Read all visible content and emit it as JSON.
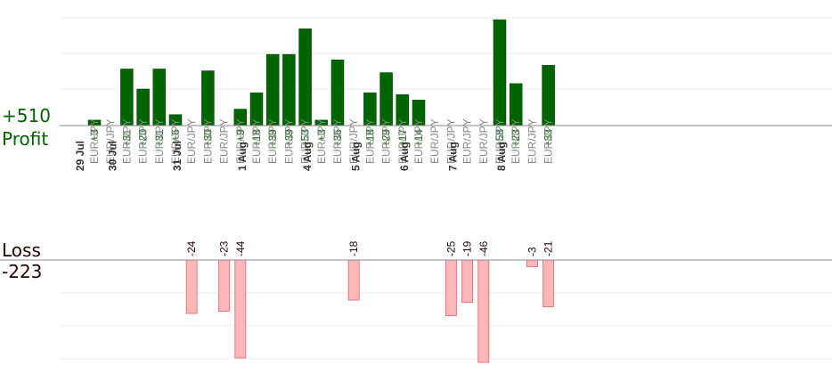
{
  "summary": {
    "profit_total": "+510",
    "profit_label": "Profit",
    "loss_label": "Loss",
    "loss_total": "-223"
  },
  "colors": {
    "profit_bar": "#006400",
    "profit_bar_edge": "#004000",
    "profit_text": "#006400",
    "loss_bar": "#ffb6b9",
    "loss_bar_edge": "#e07a80",
    "loss_text": "#2a0000",
    "grid": "#eeeeee",
    "axis": "#888888",
    "date_text": "#333333",
    "pair_text": "#888888"
  },
  "chart_data": {
    "type": "bar",
    "profit_ylim": [
      0,
      55
    ],
    "loss_ylim": [
      -32,
      0
    ],
    "grid": true,
    "categories": [
      {
        "date": "29 Jul",
        "pair": "EUR/JPY"
      },
      {
        "date": "",
        "pair": "EUR/JPY"
      },
      {
        "date": "30 Jul",
        "pair": "EUR/JPY"
      },
      {
        "date": "",
        "pair": "EUR/JPY"
      },
      {
        "date": "",
        "pair": "EUR/JPY"
      },
      {
        "date": "",
        "pair": "EUR/JPY"
      },
      {
        "date": "31 Jul",
        "pair": "EUR/JPY"
      },
      {
        "date": "",
        "pair": "EUR/JPY"
      },
      {
        "date": "",
        "pair": "EUR/JPY"
      },
      {
        "date": "",
        "pair": "EUR/JPY"
      },
      {
        "date": "1 Aug",
        "pair": "EUR/JPY"
      },
      {
        "date": "",
        "pair": "EUR/JPY"
      },
      {
        "date": "",
        "pair": "EUR/JPY"
      },
      {
        "date": "",
        "pair": "EUR/JPY"
      },
      {
        "date": "4 Aug",
        "pair": "EUR/JPY"
      },
      {
        "date": "",
        "pair": "EUR/JPY"
      },
      {
        "date": "",
        "pair": "EUR/JPY"
      },
      {
        "date": "5 Aug",
        "pair": "EUR/JPY"
      },
      {
        "date": "",
        "pair": "EUR/JPY"
      },
      {
        "date": "",
        "pair": "EUR/JPY"
      },
      {
        "date": "6 Aug",
        "pair": "EUR/JPY"
      },
      {
        "date": "",
        "pair": "EUR/JPY"
      },
      {
        "date": "",
        "pair": "EUR/JPY"
      },
      {
        "date": "7 Aug",
        "pair": "EUR/JPY"
      },
      {
        "date": "",
        "pair": "EUR/JPY"
      },
      {
        "date": "",
        "pair": "EUR/JPY"
      },
      {
        "date": "8 Aug",
        "pair": "EUR/JPY"
      },
      {
        "date": "",
        "pair": "EUR/JPY"
      },
      {
        "date": "",
        "pair": "EUR/JPY"
      }
    ],
    "series": [
      {
        "name": "Profit",
        "values": [
          3,
          null,
          31,
          20,
          31,
          6,
          null,
          30,
          null,
          9,
          18,
          39,
          39,
          53,
          3,
          36,
          null,
          18,
          29,
          17,
          14,
          null,
          null,
          null,
          null,
          58,
          23,
          null,
          33
        ]
      },
      {
        "name": "Loss",
        "values": [
          null,
          null,
          null,
          null,
          null,
          null,
          -24,
          null,
          -23,
          -44,
          null,
          null,
          null,
          null,
          null,
          null,
          -18,
          null,
          null,
          null,
          null,
          null,
          -25,
          -19,
          -46,
          null,
          null,
          -3,
          -21
        ]
      }
    ],
    "profit_labels": [
      "+3",
      "",
      "+31",
      "+20",
      "+31",
      "+6",
      "",
      "+30",
      "",
      "+9",
      "+18",
      "+39",
      "+39",
      "+53",
      "+3",
      "+36",
      "",
      "+18",
      "+29",
      "+17",
      "+14",
      "",
      "",
      "",
      "",
      "+58",
      "+23",
      "",
      "+33"
    ],
    "loss_labels": [
      "",
      "",
      "",
      "",
      "",
      "",
      "-24",
      "",
      "-23",
      "-44",
      "",
      "",
      "",
      "",
      "",
      "",
      "-18",
      "",
      "",
      "",
      "",
      "",
      "-25",
      "-19",
      "-46",
      "",
      "",
      "-3",
      "-21"
    ]
  }
}
